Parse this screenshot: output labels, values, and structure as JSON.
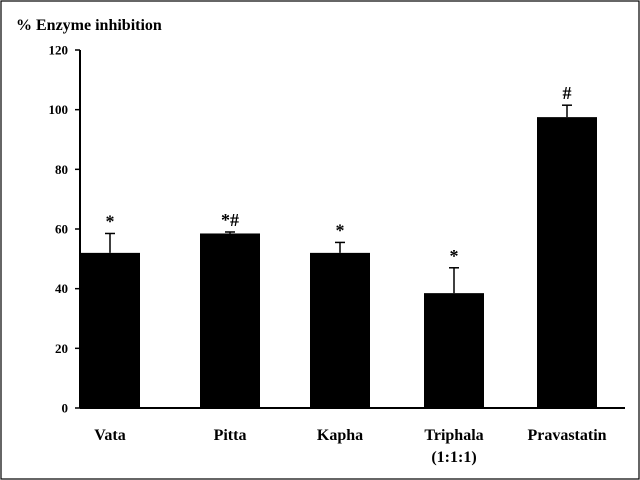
{
  "chart_data": {
    "type": "bar",
    "ylabel": "% Enzyme inhibition",
    "ylim": [
      0,
      120
    ],
    "yticks": [
      "0",
      "20",
      "40",
      "60",
      "80",
      "100",
      "120"
    ],
    "categories": [
      [
        "Vata"
      ],
      [
        "Pitta"
      ],
      [
        "Kapha"
      ],
      [
        "Triphala",
        "(1:1:1)"
      ],
      [
        "Pravastatin"
      ]
    ],
    "values": [
      52,
      58.5,
      52,
      38.5,
      97.5
    ],
    "errors": [
      6.5,
      0.5,
      3.5,
      8.5,
      4
    ],
    "annotations": [
      "*",
      "*#",
      "*",
      "*",
      "#"
    ],
    "grid": false,
    "legend": "none"
  }
}
